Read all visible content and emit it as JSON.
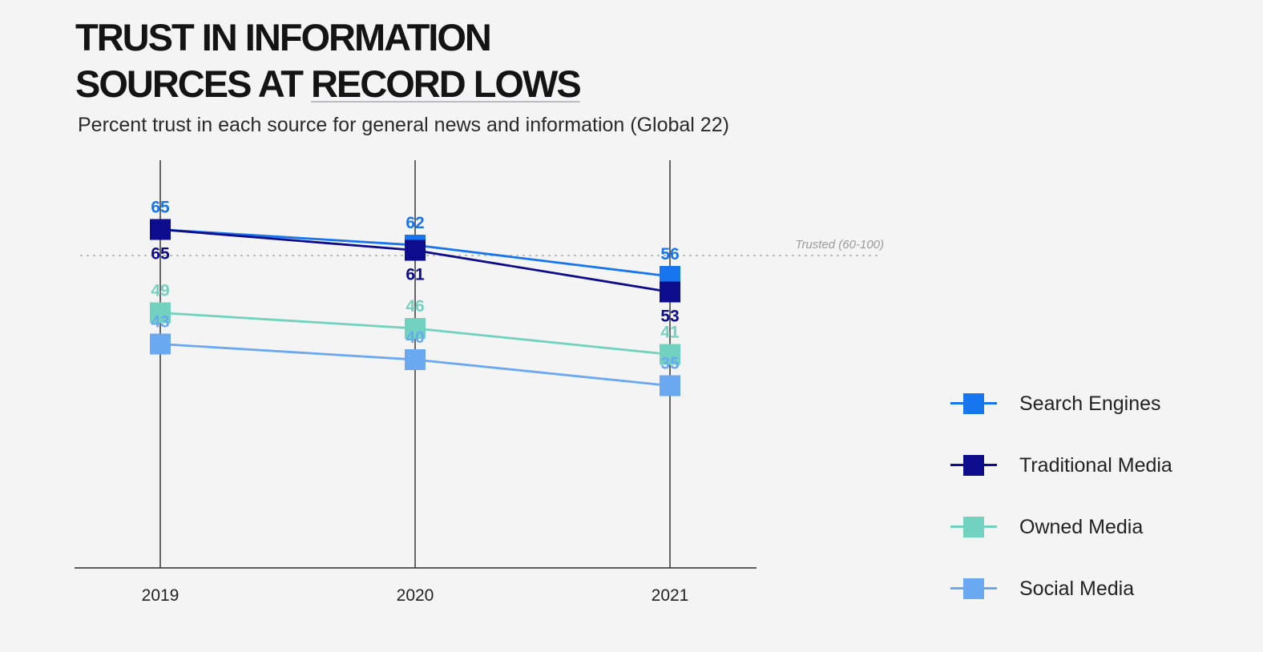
{
  "chart_data": {
    "type": "line",
    "title_line1": "TRUST IN INFORMATION",
    "title_line2_plain": "SOURCES AT ",
    "title_line2_highlight": "RECORD LOWS",
    "subtitle": "Percent trust in each source for general news and information (Global 22)",
    "x": [
      "2019",
      "2020",
      "2021"
    ],
    "ylim": [
      0,
      100
    ],
    "threshold": {
      "value": 60,
      "label": "Trusted (60-100)"
    },
    "series": [
      {
        "name": "Search Engines",
        "values": [
          65,
          62,
          56
        ],
        "color": "#1775f0"
      },
      {
        "name": "Traditional Media",
        "values": [
          65,
          61,
          53
        ],
        "color": "#0c0c8c"
      },
      {
        "name": "Owned Media",
        "values": [
          49,
          46,
          41
        ],
        "color": "#72d2c0"
      },
      {
        "name": "Social Media",
        "values": [
          43,
          40,
          35
        ],
        "color": "#6aa8f2"
      }
    ],
    "legend_position": "right"
  }
}
